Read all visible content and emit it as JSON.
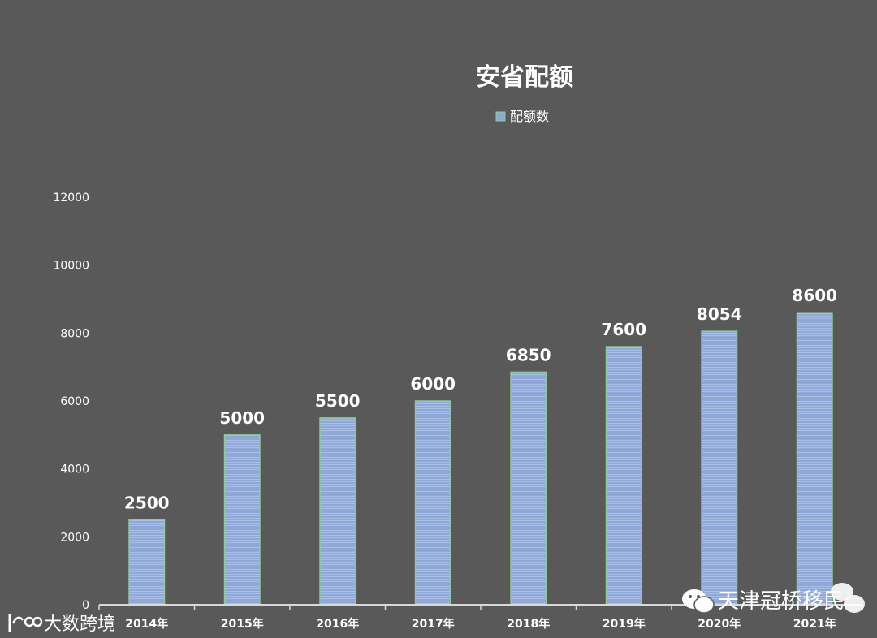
{
  "chart_data": {
    "type": "bar",
    "title": "安省配额",
    "categories": [
      "2014年",
      "2015年",
      "2016年",
      "2017年",
      "2018年",
      "2019年",
      "2020年",
      "2021年"
    ],
    "series": [
      {
        "name": "配额数",
        "values": [
          2500,
          5000,
          5500,
          6000,
          6850,
          7600,
          8054,
          8600
        ],
        "color": "#8fa8d8",
        "border_color": "#8fc7a0"
      }
    ],
    "ylim": [
      0,
      12000
    ],
    "yticks": [
      0,
      2000,
      4000,
      6000,
      8000,
      10000,
      12000
    ],
    "grid": false,
    "legend_position": "top-center",
    "data_labels": true
  },
  "watermarks": {
    "right": "天津冠桥移民",
    "left": "大数跨境"
  },
  "colors": {
    "background": "#595959",
    "text": "#ffffff",
    "axis": "#d9d9d9"
  }
}
